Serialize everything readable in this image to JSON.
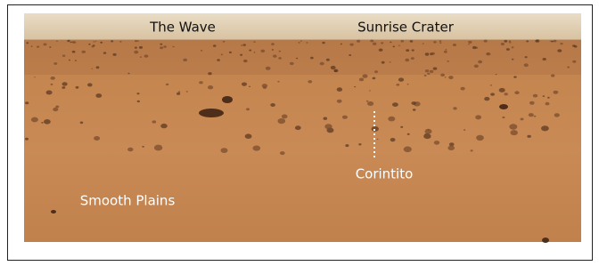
{
  "labels": [
    "The Wave",
    "Sunrise Crater",
    "Corintito",
    "Smooth Plains"
  ]
}
